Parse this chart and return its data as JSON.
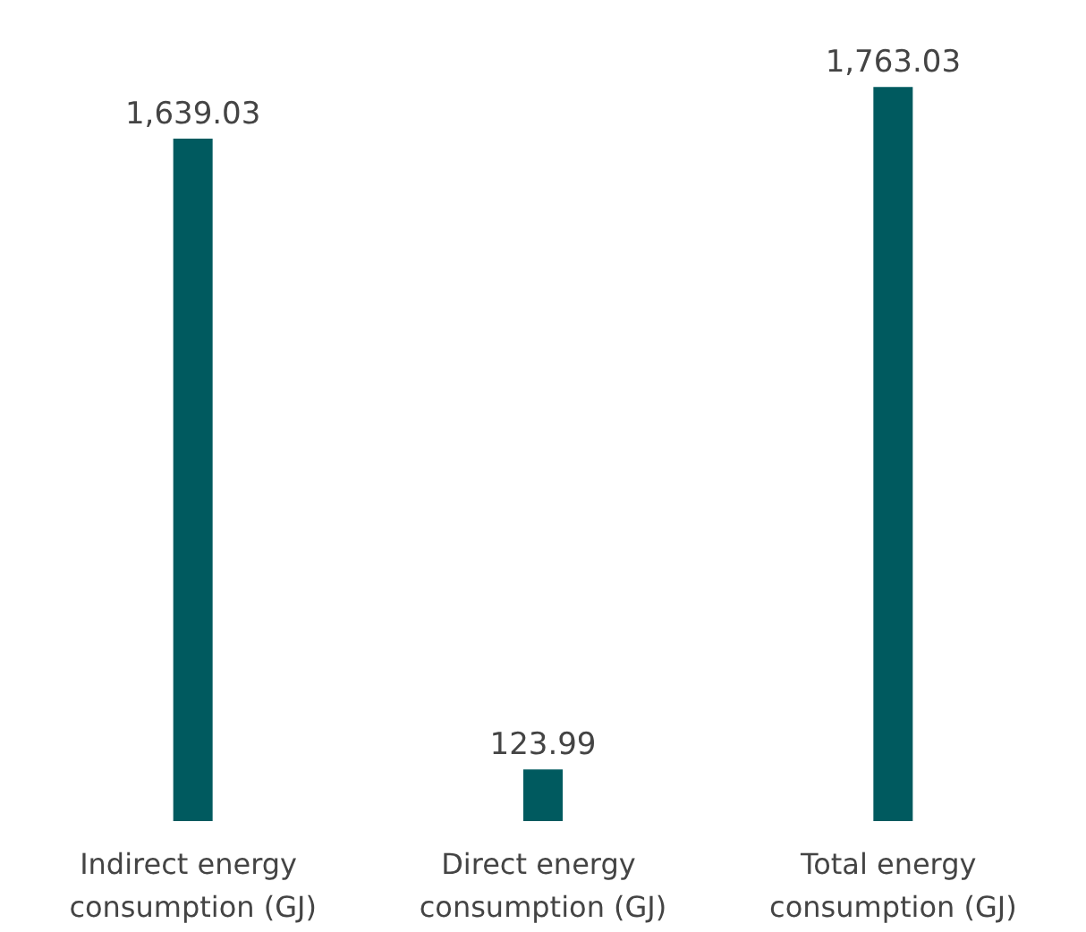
{
  "chart_data": {
    "type": "bar",
    "categories": [
      "Indirect energy consumption (GJ)",
      "Direct energy consumption (GJ)",
      "Total energy consumption (GJ)"
    ],
    "values": [
      1639.03,
      123.99,
      1763.03
    ],
    "color": "#005a5f",
    "data_labels": true,
    "value_labels": [
      "1,639.03",
      "123.99",
      "1,763.03"
    ]
  }
}
